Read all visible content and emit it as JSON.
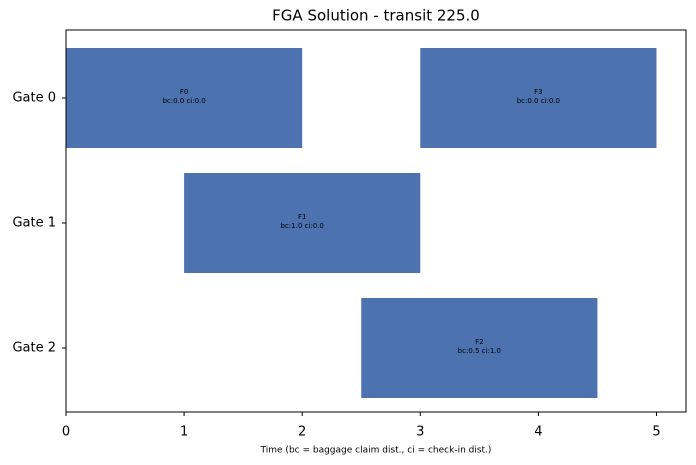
{
  "chart_data": {
    "type": "gantt",
    "title": "FGA Solution - transit 225.0",
    "x_label": "Time    (bc = baggage claim dist., ci = check-in dist.)",
    "color": "#4c72b0",
    "xlim": [
      0,
      5.25
    ],
    "xticks": [
      0,
      1,
      2,
      3,
      4,
      5
    ],
    "rows": [
      {
        "name": "Gate 0",
        "tasks": [
          {
            "name": "F0",
            "label": "bc:0.0 ci:0.0",
            "start": 0,
            "end": 2
          },
          {
            "name": "F3",
            "label": "bc:0.0 ci:0.0",
            "start": 3,
            "end": 5
          }
        ]
      },
      {
        "name": "Gate 1",
        "tasks": [
          {
            "name": "F1",
            "label": "bc:1.0 ci:0.0",
            "start": 1,
            "end": 3
          }
        ]
      },
      {
        "name": "Gate 2",
        "tasks": [
          {
            "name": "F2",
            "label": "bc:0.5 ci:1.0",
            "start": 2.5,
            "end": 4.5
          }
        ]
      }
    ]
  }
}
